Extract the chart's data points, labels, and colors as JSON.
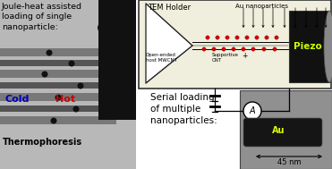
{
  "left_title": "Joule-heat assisted\nloading of single\nnanoparticle:",
  "cold_label": "Cold",
  "hot_label": "Hot",
  "thermo_label": "Thermophoresis",
  "tem_holder_label": "TEM Holder",
  "au_nano_label": "Au nanoparticles",
  "piezo_label": "Piezo",
  "open_ended_label": "Open-ended\nhost MWCNT",
  "supportive_label": "Supportive\nCNT",
  "plus_label": "+",
  "serial_label": "Serial loading\nof multiple\nnanoparticles:",
  "au_label": "Au",
  "scale_label": "45 nm",
  "cold_color": "#0000BB",
  "hot_color": "#CC0000",
  "piezo_text_color": "#CCFF00",
  "background_color": "#ffffff",
  "red_dot_color": "#CC0000",
  "diagram_bg": "#f0eedc",
  "left_panel_bg": "#b8b8b8",
  "right_bottom_bg": "#a0a0a0"
}
